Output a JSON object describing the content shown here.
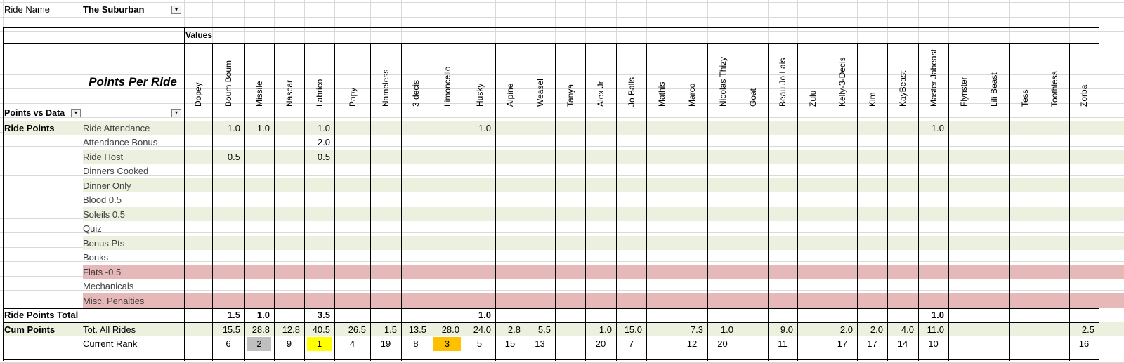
{
  "filter": {
    "label": "Ride Name",
    "value": "The Suburban"
  },
  "values_label": "Values",
  "row_header_1": "Points vs Data",
  "row_header_2": "Points Per Ride",
  "riders": [
    "Dopey",
    "Boum Boum",
    "Missile",
    "Nascar",
    "Labrico",
    "Papy",
    "Nameless",
    "3 decis",
    "Limoncello",
    "Husky",
    "Alpine",
    "Weasel",
    "Tanya",
    "Alex Jr",
    "Jo Balls",
    "Mathis",
    "Marco",
    "Nicolas Thizy",
    "Goat",
    "Beau Jo Lais",
    "Zulu",
    "Kelly-3-Decis",
    "Kim",
    "KayBeast",
    "Master Jabeast",
    "Flynster",
    "Lili Beast",
    "Tess",
    "Toothless",
    "Zorba"
  ],
  "groups": {
    "ride_points": "Ride Points",
    "ride_points_total": "Ride Points Total",
    "cum_points": "Cum Points"
  },
  "ride_point_rows": [
    {
      "label": "Ride Attendance",
      "values": [
        "",
        "1.0",
        "1.0",
        "",
        "1.0",
        "",
        "",
        "",
        "",
        "1.0",
        "",
        "",
        "",
        "",
        "",
        "",
        "",
        "",
        "",
        "",
        "",
        "",
        "",
        "",
        "1.0",
        "",
        "",
        "",
        "",
        ""
      ]
    },
    {
      "label": "Attendance Bonus",
      "values": [
        "",
        "",
        "",
        "",
        "2.0",
        "",
        "",
        "",
        "",
        "",
        "",
        "",
        "",
        "",
        "",
        "",
        "",
        "",
        "",
        "",
        "",
        "",
        "",
        "",
        "",
        "",
        "",
        "",
        "",
        ""
      ]
    },
    {
      "label": "Ride Host",
      "values": [
        "",
        "0.5",
        "",
        "",
        "0.5",
        "",
        "",
        "",
        "",
        "",
        "",
        "",
        "",
        "",
        "",
        "",
        "",
        "",
        "",
        "",
        "",
        "",
        "",
        "",
        "",
        "",
        "",
        "",
        "",
        ""
      ]
    },
    {
      "label": "Dinners Cooked",
      "values": []
    },
    {
      "label": "Dinner Only",
      "values": []
    },
    {
      "label": "Blood 0.5",
      "values": []
    },
    {
      "label": "Soleils 0.5",
      "values": []
    },
    {
      "label": "Quiz",
      "values": []
    },
    {
      "label": "Bonus Pts",
      "values": []
    },
    {
      "label": "Bonks",
      "values": []
    },
    {
      "label": "Flats -0.5",
      "values": []
    },
    {
      "label": "Mechanicals",
      "values": []
    },
    {
      "label": "Misc. Penalties",
      "values": []
    }
  ],
  "ride_points_total_values": [
    "",
    "1.5",
    "1.0",
    "",
    "3.5",
    "",
    "",
    "",
    "",
    "1.0",
    "",
    "",
    "",
    "",
    "",
    "",
    "",
    "",
    "",
    "",
    "",
    "",
    "",
    "",
    "1.0",
    "",
    "",
    "",
    "",
    ""
  ],
  "tot_all_rides": {
    "label": "Tot. All Rides",
    "values": [
      "",
      "15.5",
      "28.8",
      "12.8",
      "40.5",
      "26.5",
      "1.5",
      "13.5",
      "28.0",
      "24.0",
      "2.8",
      "5.5",
      "",
      "1.0",
      "15.0",
      "",
      "7.3",
      "1.0",
      "",
      "9.0",
      "",
      "2.0",
      "2.0",
      "4.0",
      "11.0",
      "",
      "",
      "",
      "",
      "2.5"
    ]
  },
  "current_rank": {
    "label": "Current Rank",
    "values": [
      "",
      "6",
      "2",
      "9",
      "1",
      "4",
      "19",
      "8",
      "3",
      "5",
      "15",
      "13",
      "",
      "20",
      "7",
      "",
      "12",
      "20",
      "",
      "11",
      "",
      "17",
      "17",
      "14",
      "10",
      "",
      "",
      "",
      "",
      "16"
    ]
  },
  "colors": {
    "band_green": "#ebf1de",
    "band_pink": "#e6b8b7",
    "rank_first": "#ffff00",
    "rank_second": "#bfbfbf",
    "rank_third": "#ffc000"
  }
}
